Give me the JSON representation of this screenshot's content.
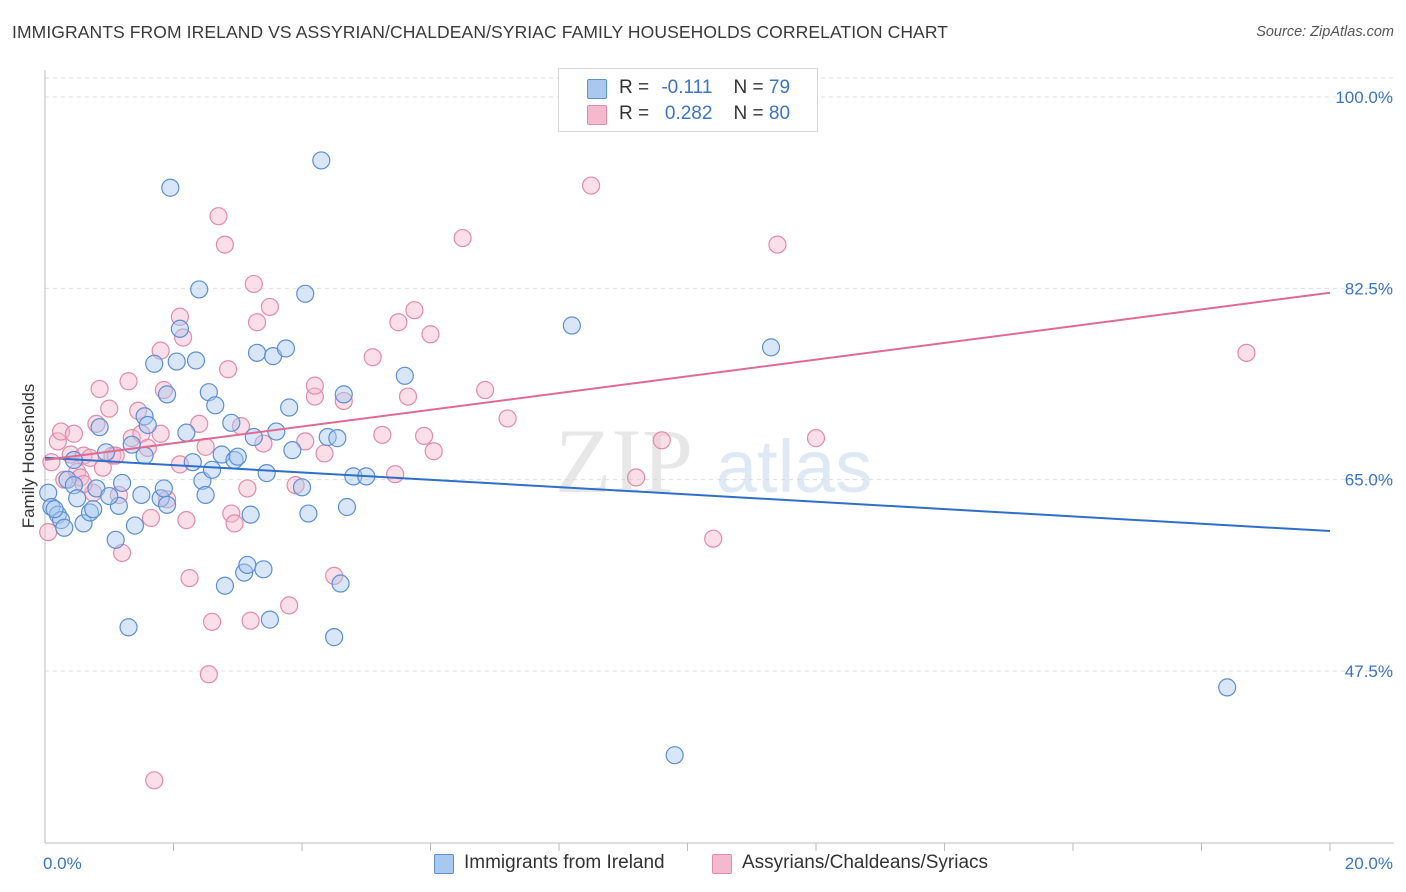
{
  "title": "IMMIGRANTS FROM IRELAND VS ASSYRIAN/CHALDEAN/SYRIAC FAMILY HOUSEHOLDS CORRELATION CHART",
  "source": "Source: ZipAtlas.com",
  "watermark": {
    "zip": "ZIP",
    "atlas": "atlas"
  },
  "colors": {
    "blue_fill": "#a9c8f0",
    "blue_stroke": "#5b8fd6",
    "blue_line": "#2f6fcc",
    "pink_fill": "#f5b9cd",
    "pink_stroke": "#e58aa8",
    "pink_line": "#e06b92",
    "tick_label": "#3a74c8",
    "grid": "#dcdcdc"
  },
  "legend": {
    "rows": [
      {
        "r_label": "R =",
        "r_value": "-0.111",
        "n_label": "N =",
        "n_value": "79",
        "color": "blue"
      },
      {
        "r_label": "R =",
        "r_value": "0.282",
        "n_label": "N =",
        "n_value": "80",
        "color": "pink"
      }
    ]
  },
  "bottom_legend": [
    "Immigrants from Ireland",
    "Assyrians/Chaldeans/Syriacs"
  ],
  "chart_data": {
    "type": "scatter",
    "title": "IMMIGRANTS FROM IRELAND VS ASSYRIAN/CHALDEAN/SYRIAC FAMILY HOUSEHOLDS CORRELATION CHART",
    "xlabel": "",
    "ylabel": "Family Households",
    "xlim": [
      0,
      20
    ],
    "ylim": [
      30,
      101.5
    ],
    "x_tick_labels": [
      "0.0%",
      "20.0%"
    ],
    "y_ticks": [
      47.5,
      65.0,
      82.5,
      100.0
    ],
    "y_tick_labels": [
      "47.5%",
      "65.0%",
      "82.5%",
      "100.0%"
    ],
    "grid": true,
    "legend_position": "top-center",
    "series": [
      {
        "name": "Immigrants from Ireland",
        "color": "blue",
        "trend": {
          "x": [
            0,
            20
          ],
          "y": [
            67.0,
            60.3
          ]
        },
        "points": [
          [
            0.05,
            63.8
          ],
          [
            0.1,
            62.5
          ],
          [
            0.2,
            61.8
          ],
          [
            0.25,
            61.3
          ],
          [
            0.3,
            60.6
          ],
          [
            0.35,
            65.0
          ],
          [
            0.45,
            64.5
          ],
          [
            0.45,
            66.8
          ],
          [
            0.5,
            63.3
          ],
          [
            0.6,
            61.0
          ],
          [
            0.7,
            62.0
          ],
          [
            0.75,
            62.3
          ],
          [
            0.8,
            64.2
          ],
          [
            0.85,
            69.8
          ],
          [
            0.95,
            67.5
          ],
          [
            1.1,
            59.5
          ],
          [
            1.15,
            62.6
          ],
          [
            1.2,
            64.7
          ],
          [
            1.3,
            51.5
          ],
          [
            1.35,
            68.2
          ],
          [
            1.4,
            60.8
          ],
          [
            1.5,
            63.6
          ],
          [
            1.55,
            67.2
          ],
          [
            1.55,
            70.8
          ],
          [
            1.6,
            70.0
          ],
          [
            1.7,
            75.6
          ],
          [
            1.8,
            63.3
          ],
          [
            1.85,
            64.2
          ],
          [
            1.9,
            62.7
          ],
          [
            1.9,
            72.8
          ],
          [
            1.95,
            91.7
          ],
          [
            2.05,
            75.8
          ],
          [
            2.1,
            78.8
          ],
          [
            2.2,
            69.3
          ],
          [
            2.3,
            66.6
          ],
          [
            2.35,
            75.9
          ],
          [
            2.4,
            82.4
          ],
          [
            2.45,
            64.9
          ],
          [
            2.5,
            63.6
          ],
          [
            2.55,
            73.0
          ],
          [
            2.6,
            65.9
          ],
          [
            2.65,
            71.8
          ],
          [
            2.75,
            67.3
          ],
          [
            2.8,
            55.3
          ],
          [
            2.9,
            70.2
          ],
          [
            2.95,
            66.8
          ],
          [
            3.0,
            67.1
          ],
          [
            3.1,
            56.5
          ],
          [
            3.15,
            57.2
          ],
          [
            3.2,
            61.8
          ],
          [
            3.25,
            68.9
          ],
          [
            3.3,
            76.6
          ],
          [
            3.4,
            56.8
          ],
          [
            3.45,
            65.6
          ],
          [
            3.5,
            52.2
          ],
          [
            3.55,
            76.3
          ],
          [
            3.6,
            69.4
          ],
          [
            3.75,
            77.0
          ],
          [
            3.8,
            71.6
          ],
          [
            3.85,
            67.7
          ],
          [
            4.0,
            64.3
          ],
          [
            4.05,
            82.0
          ],
          [
            4.1,
            61.9
          ],
          [
            4.3,
            94.2
          ],
          [
            4.4,
            68.9
          ],
          [
            4.5,
            50.6
          ],
          [
            4.55,
            68.8
          ],
          [
            4.6,
            55.5
          ],
          [
            4.65,
            72.8
          ],
          [
            4.7,
            62.5
          ],
          [
            4.8,
            65.3
          ],
          [
            5.0,
            65.3
          ],
          [
            5.6,
            74.5
          ],
          [
            8.2,
            79.1
          ],
          [
            9.8,
            39.8
          ],
          [
            11.3,
            77.1
          ],
          [
            18.4,
            46.0
          ],
          [
            0.15,
            62.3
          ],
          [
            1.0,
            63.5
          ]
        ]
      },
      {
        "name": "Assyrians/Chaldeans/Syriacs",
        "color": "pink",
        "trend": {
          "x": [
            0,
            20
          ],
          "y": [
            66.8,
            82.1
          ]
        },
        "points": [
          [
            0.05,
            60.2
          ],
          [
            0.1,
            66.6
          ],
          [
            0.2,
            68.5
          ],
          [
            0.25,
            69.4
          ],
          [
            0.3,
            65.0
          ],
          [
            0.4,
            67.3
          ],
          [
            0.45,
            69.2
          ],
          [
            0.5,
            65.7
          ],
          [
            0.55,
            65.2
          ],
          [
            0.6,
            67.2
          ],
          [
            0.7,
            67.0
          ],
          [
            0.75,
            63.8
          ],
          [
            0.8,
            70.1
          ],
          [
            0.85,
            73.3
          ],
          [
            0.9,
            66.1
          ],
          [
            1.0,
            71.5
          ],
          [
            1.05,
            67.2
          ],
          [
            1.1,
            67.2
          ],
          [
            1.15,
            63.6
          ],
          [
            1.2,
            58.3
          ],
          [
            1.3,
            74.0
          ],
          [
            1.35,
            68.8
          ],
          [
            1.45,
            71.3
          ],
          [
            1.5,
            69.2
          ],
          [
            1.6,
            67.9
          ],
          [
            1.65,
            61.5
          ],
          [
            1.7,
            37.5
          ],
          [
            1.8,
            69.2
          ],
          [
            1.8,
            76.8
          ],
          [
            1.85,
            73.2
          ],
          [
            1.9,
            63.2
          ],
          [
            2.1,
            66.4
          ],
          [
            2.1,
            79.9
          ],
          [
            2.15,
            78.0
          ],
          [
            2.2,
            61.3
          ],
          [
            2.25,
            56.0
          ],
          [
            2.4,
            70.1
          ],
          [
            2.5,
            68.0
          ],
          [
            2.55,
            47.2
          ],
          [
            2.6,
            52.0
          ],
          [
            2.7,
            89.1
          ],
          [
            2.8,
            86.5
          ],
          [
            2.85,
            75.1
          ],
          [
            2.9,
            61.9
          ],
          [
            2.95,
            61.0
          ],
          [
            3.05,
            69.9
          ],
          [
            3.15,
            64.2
          ],
          [
            3.2,
            52.1
          ],
          [
            3.25,
            82.9
          ],
          [
            3.3,
            79.4
          ],
          [
            3.4,
            68.3
          ],
          [
            3.5,
            80.8
          ],
          [
            3.8,
            53.5
          ],
          [
            3.9,
            64.5
          ],
          [
            4.05,
            68.5
          ],
          [
            4.2,
            72.6
          ],
          [
            4.2,
            73.6
          ],
          [
            4.35,
            67.4
          ],
          [
            4.5,
            56.2
          ],
          [
            4.65,
            72.2
          ],
          [
            5.1,
            76.2
          ],
          [
            5.25,
            69.1
          ],
          [
            5.45,
            65.5
          ],
          [
            5.65,
            72.6
          ],
          [
            5.75,
            80.5
          ],
          [
            5.9,
            69.0
          ],
          [
            6.05,
            67.6
          ],
          [
            6.5,
            87.1
          ],
          [
            6.85,
            73.2
          ],
          [
            7.2,
            70.6
          ],
          [
            8.5,
            91.9
          ],
          [
            9.2,
            65.2
          ],
          [
            9.6,
            68.6
          ],
          [
            10.4,
            59.6
          ],
          [
            11.4,
            86.5
          ],
          [
            12.0,
            68.8
          ],
          [
            18.7,
            76.6
          ],
          [
            5.5,
            79.4
          ],
          [
            6.0,
            78.3
          ],
          [
            0.6,
            64.6
          ]
        ]
      }
    ]
  }
}
